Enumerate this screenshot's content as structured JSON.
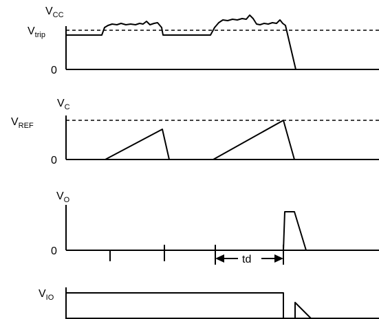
{
  "panels": {
    "vcc": {
      "label_main": "V",
      "label_sub": "CC",
      "trip_main": "V",
      "trip_sub": "trip",
      "zero": "0"
    },
    "vc": {
      "label_main": "V",
      "label_sub": "C",
      "ref_main": "V",
      "ref_sub": "REF",
      "zero": "0"
    },
    "vo": {
      "label_main": "V",
      "label_sub": "O",
      "zero": "0",
      "td": "td"
    },
    "vio": {
      "label_main": "V",
      "label_sub": "IO"
    }
  }
}
